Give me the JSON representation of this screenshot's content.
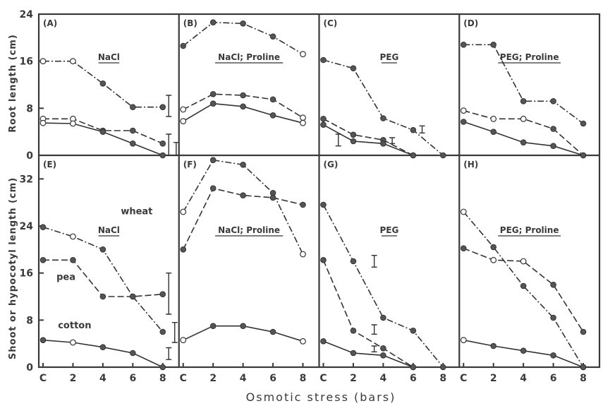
{
  "figure": {
    "x_axis_title": "Osmotic stress (bars)",
    "rows": [
      {
        "y_axis_title": "Root length (cm)",
        "y_ticks": [
          "0",
          "8",
          "16",
          "24"
        ]
      },
      {
        "y_axis_title": "Shoot or hypocotyl length (cm)",
        "y_ticks": [
          "0",
          "8",
          "16",
          "24",
          "32"
        ]
      }
    ],
    "x_tick_labels": [
      "C",
      "2",
      "4",
      "6",
      "8"
    ]
  },
  "chart_data": [
    {
      "type": "line",
      "panel_letter": "(A)",
      "title": "NaCl",
      "row": 0,
      "col": 0,
      "ylim": [
        0,
        24
      ],
      "xlim": [
        0,
        8
      ],
      "series": [
        {
          "id": "wheat",
          "style": "dash-dot",
          "points": [
            [
              0,
              16,
              "o"
            ],
            [
              2,
              16,
              "o"
            ],
            [
              4,
              12.2,
              "f"
            ],
            [
              6,
              8.2,
              "f"
            ],
            [
              8,
              8.2,
              "f"
            ]
          ]
        },
        {
          "id": "pea",
          "style": "dashed",
          "points": [
            [
              0,
              6.2,
              "o"
            ],
            [
              2,
              6.2,
              "o"
            ],
            [
              4,
              4.2,
              "f"
            ],
            [
              6,
              4.2,
              "f"
            ],
            [
              8,
              2,
              "f"
            ]
          ]
        },
        {
          "id": "cotton",
          "style": "solid",
          "points": [
            [
              0,
              5.5,
              "o"
            ],
            [
              2,
              5.4,
              "o"
            ],
            [
              4,
              4,
              "f"
            ],
            [
              6,
              2,
              "f"
            ],
            [
              8,
              0,
              "f"
            ]
          ]
        }
      ],
      "error_bars": [
        {
          "x": 8.4,
          "low": 6.6,
          "high": 10.2
        },
        {
          "x": 8.4,
          "low": 0,
          "high": 3.6
        },
        {
          "x": 8.9,
          "low": 0,
          "high": 2.2
        }
      ]
    },
    {
      "type": "line",
      "panel_letter": "(B)",
      "title": "NaCl; Proline",
      "row": 0,
      "col": 1,
      "ylim": [
        0,
        24
      ],
      "xlim": [
        0,
        8
      ],
      "series": [
        {
          "id": "wheat",
          "style": "dash-dot",
          "points": [
            [
              0,
              18.6,
              "f"
            ],
            [
              2,
              22.6,
              "f"
            ],
            [
              4,
              22.4,
              "f"
            ],
            [
              6,
              20.2,
              "f"
            ],
            [
              8,
              17.2,
              "o"
            ]
          ]
        },
        {
          "id": "pea",
          "style": "dashed",
          "points": [
            [
              0,
              7.8,
              "o"
            ],
            [
              2,
              10.4,
              "f"
            ],
            [
              4,
              10.2,
              "f"
            ],
            [
              6,
              9.5,
              "f"
            ],
            [
              8,
              6.4,
              "o"
            ]
          ]
        },
        {
          "id": "cotton",
          "style": "solid",
          "points": [
            [
              0,
              5.8,
              "o"
            ],
            [
              2,
              8.8,
              "f"
            ],
            [
              4,
              8.3,
              "f"
            ],
            [
              6,
              6.8,
              "f"
            ],
            [
              8,
              5.5,
              "o"
            ]
          ]
        }
      ],
      "error_bars": []
    },
    {
      "type": "line",
      "panel_letter": "(C)",
      "title": "PEG",
      "row": 0,
      "col": 2,
      "ylim": [
        0,
        24
      ],
      "xlim": [
        0,
        8
      ],
      "series": [
        {
          "id": "wheat",
          "style": "dash-dot",
          "points": [
            [
              0,
              16.2,
              "f"
            ],
            [
              2,
              14.8,
              "f"
            ],
            [
              4,
              6.3,
              "f"
            ],
            [
              6,
              4.3,
              "f"
            ],
            [
              8,
              0,
              "f"
            ]
          ]
        },
        {
          "id": "pea",
          "style": "dashed",
          "points": [
            [
              0,
              6.2,
              "f"
            ],
            [
              2,
              3.5,
              "f"
            ],
            [
              4,
              2.6,
              "f"
            ],
            [
              6,
              0,
              "f"
            ]
          ]
        },
        {
          "id": "cotton",
          "style": "solid",
          "points": [
            [
              0,
              5.2,
              "f"
            ],
            [
              2,
              2.4,
              "f"
            ],
            [
              4,
              2,
              "f"
            ],
            [
              6,
              0,
              "f"
            ]
          ]
        }
      ],
      "error_bars": [
        {
          "x": 1,
          "low": 1.6,
          "high": 3.6
        },
        {
          "x": 6.6,
          "low": 3.8,
          "high": 5
        },
        {
          "x": 4.6,
          "low": 2,
          "high": 3
        }
      ]
    },
    {
      "type": "line",
      "panel_letter": "(D)",
      "title": "PEG; Proline",
      "row": 0,
      "col": 3,
      "ylim": [
        0,
        24
      ],
      "xlim": [
        0,
        8
      ],
      "series": [
        {
          "id": "wheat",
          "style": "dash-dot",
          "points": [
            [
              0,
              18.8,
              "f"
            ],
            [
              2,
              18.8,
              "f"
            ],
            [
              4,
              9.2,
              "f"
            ],
            [
              6,
              9.2,
              "f"
            ],
            [
              8,
              5.4,
              "f"
            ]
          ]
        },
        {
          "id": "pea",
          "style": "dashed",
          "points": [
            [
              0,
              7.6,
              "o"
            ],
            [
              2,
              6.2,
              "o"
            ],
            [
              4,
              6.2,
              "o"
            ],
            [
              6,
              4.5,
              "f"
            ],
            [
              8,
              0,
              "f"
            ]
          ]
        },
        {
          "id": "cotton",
          "style": "solid",
          "points": [
            [
              0,
              5.7,
              "f"
            ],
            [
              2,
              4,
              "f"
            ],
            [
              4,
              2.2,
              "f"
            ],
            [
              6,
              1.6,
              "f"
            ],
            [
              8,
              0,
              "f"
            ]
          ]
        }
      ],
      "error_bars": []
    },
    {
      "type": "line",
      "panel_letter": "(E)",
      "title": "NaCl",
      "row": 1,
      "col": 0,
      "ylim": [
        0,
        36
      ],
      "xlim": [
        0,
        8
      ],
      "series_labels": [
        "wheat",
        "pea",
        "cotton"
      ],
      "series": [
        {
          "id": "wheat",
          "style": "dash-dot",
          "points": [
            [
              0,
              23.8,
              "f"
            ],
            [
              2,
              22.2,
              "o"
            ],
            [
              4,
              20,
              "f"
            ],
            [
              6,
              12,
              "f"
            ],
            [
              8,
              6,
              "f"
            ]
          ]
        },
        {
          "id": "pea",
          "style": "dashed",
          "points": [
            [
              0,
              18.2,
              "f"
            ],
            [
              2,
              18.2,
              "f"
            ],
            [
              4,
              12,
              "f"
            ],
            [
              6,
              12,
              "f"
            ],
            [
              8,
              12.4,
              "f"
            ]
          ]
        },
        {
          "id": "cotton",
          "style": "solid",
          "points": [
            [
              0,
              4.6,
              "f"
            ],
            [
              2,
              4.2,
              "o"
            ],
            [
              4,
              3.4,
              "f"
            ],
            [
              6,
              2.4,
              "f"
            ],
            [
              8,
              0,
              "f"
            ]
          ]
        }
      ],
      "error_bars": [
        {
          "x": 8.4,
          "low": 9,
          "high": 16
        },
        {
          "x": 8.8,
          "low": 4.2,
          "high": 7.6
        },
        {
          "x": 8.4,
          "low": 1.3,
          "high": 3.3
        }
      ]
    },
    {
      "type": "line",
      "panel_letter": "(F)",
      "title": "NaCl; Proline",
      "row": 1,
      "col": 1,
      "ylim": [
        0,
        36
      ],
      "xlim": [
        0,
        8
      ],
      "series": [
        {
          "id": "wheat",
          "style": "dash-dot",
          "points": [
            [
              0,
              26.4,
              "o"
            ],
            [
              2,
              35.2,
              "f"
            ],
            [
              4,
              34.4,
              "f"
            ],
            [
              6,
              29.6,
              "f"
            ],
            [
              8,
              19.2,
              "o"
            ]
          ]
        },
        {
          "id": "pea",
          "style": "dashed",
          "points": [
            [
              0,
              20,
              "f"
            ],
            [
              2,
              30.4,
              "f"
            ],
            [
              4,
              29.2,
              "f"
            ],
            [
              6,
              28.8,
              "f"
            ],
            [
              8,
              27.6,
              "f"
            ]
          ]
        },
        {
          "id": "cotton",
          "style": "solid",
          "points": [
            [
              0,
              4.6,
              "o"
            ],
            [
              2,
              7,
              "f"
            ],
            [
              4,
              7,
              "f"
            ],
            [
              6,
              6,
              "f"
            ],
            [
              8,
              4.4,
              "o"
            ]
          ]
        }
      ],
      "error_bars": []
    },
    {
      "type": "line",
      "panel_letter": "(G)",
      "title": "PEG",
      "row": 1,
      "col": 2,
      "ylim": [
        0,
        36
      ],
      "xlim": [
        0,
        8
      ],
      "series": [
        {
          "id": "wheat",
          "style": "dash-dot",
          "points": [
            [
              0,
              27.6,
              "f"
            ],
            [
              2,
              18,
              "f"
            ],
            [
              4,
              8.4,
              "f"
            ],
            [
              6,
              6.2,
              "f"
            ],
            [
              8,
              0,
              "f"
            ]
          ]
        },
        {
          "id": "pea",
          "style": "dashed",
          "points": [
            [
              0,
              18.2,
              "f"
            ],
            [
              2,
              6.2,
              "f"
            ],
            [
              4,
              3.2,
              "f"
            ],
            [
              6,
              0,
              "f"
            ]
          ]
        },
        {
          "id": "cotton",
          "style": "solid",
          "points": [
            [
              0,
              4.4,
              "f"
            ],
            [
              2,
              2.4,
              "f"
            ],
            [
              4,
              2,
              "f"
            ],
            [
              6,
              0,
              "f"
            ]
          ]
        }
      ],
      "error_bars": [
        {
          "x": 3.4,
          "low": 17,
          "high": 19
        },
        {
          "x": 3.4,
          "low": 5.6,
          "high": 7.2
        },
        {
          "x": 3.4,
          "low": 2.6,
          "high": 3.6
        }
      ]
    },
    {
      "type": "line",
      "panel_letter": "(H)",
      "title": "PEG; Proline",
      "row": 1,
      "col": 3,
      "ylim": [
        0,
        36
      ],
      "xlim": [
        0,
        8
      ],
      "series": [
        {
          "id": "wheat",
          "style": "dash-dot",
          "points": [
            [
              0,
              26.4,
              "o"
            ],
            [
              2,
              20.4,
              "f"
            ],
            [
              4,
              13.8,
              "f"
            ],
            [
              6,
              8.4,
              "f"
            ],
            [
              8,
              0,
              "f"
            ]
          ]
        },
        {
          "id": "pea",
          "style": "dashed",
          "points": [
            [
              0,
              20.2,
              "f"
            ],
            [
              2,
              18.2,
              "o"
            ],
            [
              4,
              18,
              "o"
            ],
            [
              6,
              14,
              "f"
            ],
            [
              8,
              6,
              "f"
            ]
          ]
        },
        {
          "id": "cotton",
          "style": "solid",
          "points": [
            [
              0,
              4.6,
              "o"
            ],
            [
              2,
              3.6,
              "f"
            ],
            [
              4,
              2.8,
              "f"
            ],
            [
              6,
              2,
              "f"
            ],
            [
              8,
              0,
              "f"
            ]
          ]
        }
      ],
      "error_bars": []
    }
  ]
}
